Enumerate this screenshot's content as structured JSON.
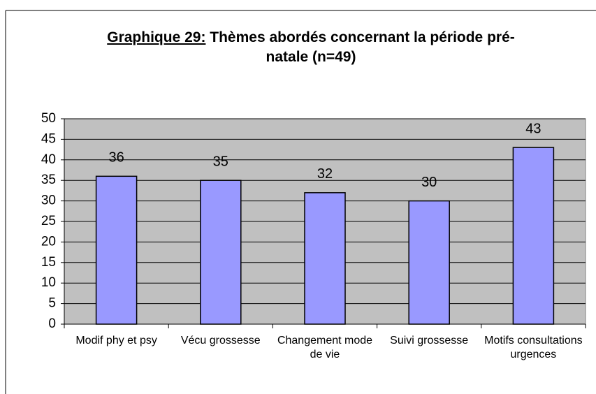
{
  "chart_data": {
    "type": "bar",
    "title_label": "Graphique 29:",
    "title": "Thèmes abordés concernant la période pré-natale (n=49)",
    "categories": [
      "Modif phy et psy",
      "Vécu grossesse",
      "Changement mode de vie",
      "Suivi grossesse",
      "Motifs consultations urgences"
    ],
    "values": [
      36,
      35,
      32,
      30,
      43
    ],
    "color": "#9999ff",
    "ylim": [
      0,
      50
    ],
    "yticks": [
      0,
      5,
      10,
      15,
      20,
      25,
      30,
      35,
      40,
      45,
      50
    ],
    "grid": true
  }
}
